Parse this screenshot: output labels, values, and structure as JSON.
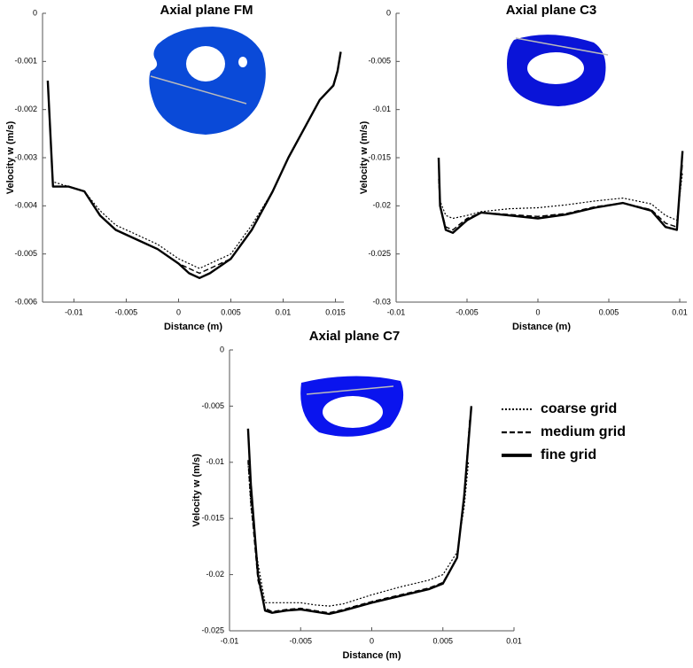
{
  "chart_data": [
    {
      "type": "line",
      "title": "Axial plane FM",
      "xlabel": "Distance (m)",
      "ylabel": "Velocity w (m/s)",
      "xlim": [
        -0.013,
        0.0158
      ],
      "ylim": [
        -0.006,
        0
      ],
      "xticks": [
        -0.01,
        -0.005,
        0,
        0.005,
        0.01,
        0.015
      ],
      "yticks": [
        0,
        -0.001,
        -0.002,
        -0.003,
        -0.004,
        -0.005,
        -0.006
      ],
      "series": [
        {
          "name": "coarse grid",
          "style": "dotted",
          "color": "#000000",
          "x": [
            -0.0125,
            -0.012,
            -0.0105,
            -0.009,
            -0.0075,
            -0.006,
            -0.004,
            -0.002,
            0,
            0.001,
            0.002,
            0.003,
            0.005,
            0.007,
            0.009,
            0.0105,
            0.012,
            0.0135,
            0.0148,
            0.0152,
            0.0155
          ],
          "values": [
            -0.0014,
            -0.0035,
            -0.0036,
            -0.0037,
            -0.0041,
            -0.0044,
            -0.0046,
            -0.0048,
            -0.0051,
            -0.0052,
            -0.0053,
            -0.0052,
            -0.005,
            -0.0044,
            -0.0037,
            -0.003,
            -0.0024,
            -0.0018,
            -0.0015,
            -0.0012,
            -0.0008
          ]
        },
        {
          "name": "medium grid",
          "style": "dashed",
          "color": "#000000",
          "x": [
            -0.0125,
            -0.012,
            -0.0105,
            -0.009,
            -0.0075,
            -0.006,
            -0.004,
            -0.002,
            0,
            0.001,
            0.002,
            0.003,
            0.005,
            0.007,
            0.009,
            0.0105,
            0.012,
            0.0135,
            0.0148,
            0.0152,
            0.0155
          ],
          "values": [
            -0.0014,
            -0.0036,
            -0.0036,
            -0.0037,
            -0.0042,
            -0.0045,
            -0.0047,
            -0.0049,
            -0.0052,
            -0.0053,
            -0.0054,
            -0.0053,
            -0.0051,
            -0.0045,
            -0.0037,
            -0.003,
            -0.0024,
            -0.0018,
            -0.0015,
            -0.0012,
            -0.0008
          ]
        },
        {
          "name": "fine grid",
          "style": "solid",
          "color": "#000000",
          "x": [
            -0.0125,
            -0.012,
            -0.0105,
            -0.009,
            -0.0075,
            -0.006,
            -0.004,
            -0.002,
            0,
            0.001,
            0.002,
            0.003,
            0.005,
            0.007,
            0.009,
            0.0105,
            0.012,
            0.0135,
            0.0148,
            0.0152,
            0.0155
          ],
          "values": [
            -0.0014,
            -0.0036,
            -0.0036,
            -0.0037,
            -0.0042,
            -0.0045,
            -0.0047,
            -0.0049,
            -0.0052,
            -0.0054,
            -0.0055,
            -0.0054,
            -0.0051,
            -0.0045,
            -0.0037,
            -0.003,
            -0.0024,
            -0.0018,
            -0.0015,
            -0.0012,
            -0.0008
          ]
        }
      ]
    },
    {
      "type": "line",
      "title": "Axial plane C3",
      "xlabel": "Distance (m)",
      "ylabel": "Velocity w (m/s)",
      "xlim": [
        -0.01,
        0.0105
      ],
      "ylim": [
        -0.03,
        0
      ],
      "xticks": [
        -0.01,
        -0.005,
        0,
        0.005,
        0.01
      ],
      "yticks": [
        0,
        -0.005,
        -0.01,
        -0.015,
        -0.02,
        -0.025,
        -0.03
      ],
      "series": [
        {
          "name": "coarse grid",
          "style": "dotted",
          "color": "#000000",
          "x": [
            -0.007,
            -0.0069,
            -0.0065,
            -0.006,
            -0.005,
            -0.004,
            -0.002,
            0,
            0.002,
            0.004,
            0.006,
            0.008,
            0.009,
            0.0098,
            0.0102
          ],
          "values": [
            -0.0175,
            -0.0195,
            -0.021,
            -0.0213,
            -0.021,
            -0.0206,
            -0.0203,
            -0.0202,
            -0.0199,
            -0.0195,
            -0.0192,
            -0.0198,
            -0.021,
            -0.0215,
            -0.0165
          ]
        },
        {
          "name": "medium grid",
          "style": "dashed",
          "color": "#000000",
          "x": [
            -0.007,
            -0.0069,
            -0.0065,
            -0.006,
            -0.005,
            -0.004,
            -0.002,
            0,
            0.002,
            0.004,
            0.006,
            0.008,
            0.009,
            0.0098,
            0.0102
          ],
          "values": [
            -0.0172,
            -0.02,
            -0.0222,
            -0.0225,
            -0.0213,
            -0.0207,
            -0.0209,
            -0.0211,
            -0.0208,
            -0.0201,
            -0.0197,
            -0.0204,
            -0.0218,
            -0.0222,
            -0.0155
          ]
        },
        {
          "name": "fine grid",
          "style": "solid",
          "color": "#000000",
          "x": [
            -0.007,
            -0.0069,
            -0.0065,
            -0.006,
            -0.005,
            -0.004,
            -0.002,
            0,
            0.002,
            0.004,
            0.006,
            0.008,
            0.009,
            0.0098,
            0.0102
          ],
          "values": [
            -0.015,
            -0.02,
            -0.0225,
            -0.0228,
            -0.0215,
            -0.0207,
            -0.021,
            -0.0213,
            -0.0209,
            -0.0202,
            -0.0197,
            -0.0205,
            -0.0222,
            -0.0225,
            -0.0143
          ]
        }
      ]
    },
    {
      "type": "line",
      "title": "Axial plane C7",
      "xlabel": "Distance (m)",
      "ylabel": "Velocity w (m/s)",
      "xlim": [
        -0.01,
        0.01
      ],
      "ylim": [
        -0.025,
        0
      ],
      "xticks": [
        -0.01,
        -0.005,
        0,
        0.005,
        0.01
      ],
      "yticks": [
        0,
        -0.005,
        -0.01,
        -0.015,
        -0.02,
        -0.025
      ],
      "series": [
        {
          "name": "coarse grid",
          "style": "dotted",
          "color": "#000000",
          "x": [
            -0.0087,
            -0.0085,
            -0.008,
            -0.0075,
            -0.007,
            -0.006,
            -0.005,
            -0.004,
            -0.003,
            -0.002,
            0,
            0.002,
            0.004,
            0.005,
            0.006,
            0.0065,
            0.0068
          ],
          "values": [
            -0.01,
            -0.014,
            -0.019,
            -0.0225,
            -0.0225,
            -0.0225,
            -0.0225,
            -0.0227,
            -0.0228,
            -0.0226,
            -0.0218,
            -0.0211,
            -0.0205,
            -0.02,
            -0.018,
            -0.014,
            -0.01
          ]
        },
        {
          "name": "medium grid",
          "style": "dashed",
          "color": "#000000",
          "x": [
            -0.0087,
            -0.0085,
            -0.008,
            -0.0075,
            -0.007,
            -0.006,
            -0.005,
            -0.004,
            -0.003,
            -0.002,
            0,
            0.002,
            0.004,
            0.005,
            0.006,
            0.0065,
            0.0069
          ],
          "values": [
            -0.0098,
            -0.0135,
            -0.0205,
            -0.023,
            -0.0233,
            -0.0231,
            -0.023,
            -0.0232,
            -0.0234,
            -0.0231,
            -0.0224,
            -0.0218,
            -0.0212,
            -0.0207,
            -0.0185,
            -0.013,
            -0.006
          ]
        },
        {
          "name": "fine grid",
          "style": "solid",
          "color": "#000000",
          "x": [
            -0.0087,
            -0.0085,
            -0.008,
            -0.0075,
            -0.007,
            -0.006,
            -0.005,
            -0.004,
            -0.003,
            -0.002,
            0,
            0.002,
            0.004,
            0.005,
            0.006,
            0.0065,
            0.007
          ],
          "values": [
            -0.007,
            -0.012,
            -0.02,
            -0.0232,
            -0.0234,
            -0.0232,
            -0.0231,
            -0.0233,
            -0.0235,
            -0.0232,
            -0.0225,
            -0.0219,
            -0.0213,
            -0.0208,
            -0.0185,
            -0.013,
            -0.005
          ]
        }
      ]
    }
  ]
}
